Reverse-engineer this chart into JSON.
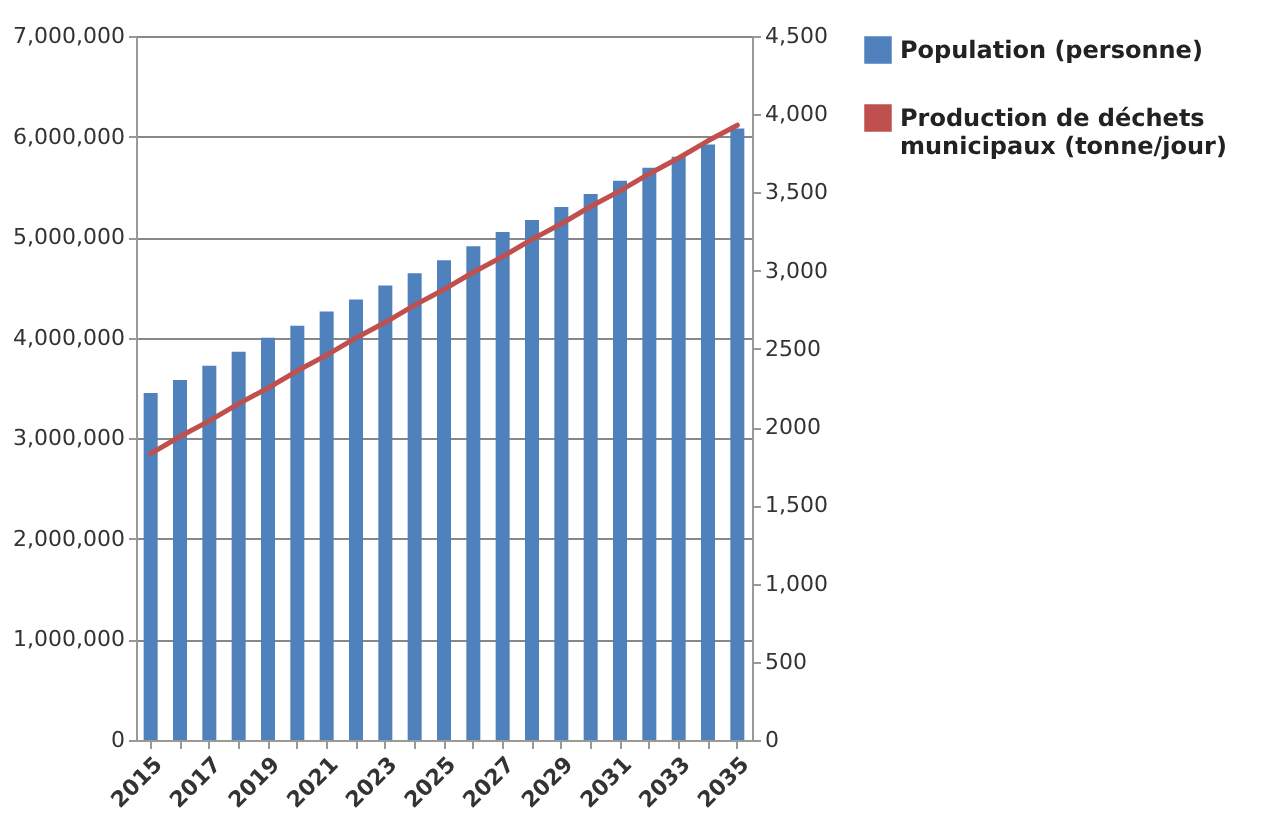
{
  "chart_data": {
    "type": "bar",
    "categories": [
      "2015",
      null,
      "2017",
      null,
      "2019",
      null,
      "2021",
      null,
      "2023",
      null,
      "2025",
      null,
      "2027",
      null,
      "2029",
      null,
      "2031",
      null,
      "2033",
      null,
      "2035"
    ],
    "series": [
      {
        "name": "Population (personne)",
        "color": "#4f81bd",
        "values": [
          3450000,
          3580000,
          3720000,
          3860000,
          4000000,
          4120000,
          4260000,
          4380000,
          4520000,
          4640000,
          4770000,
          4910000,
          5050000,
          5170000,
          5300000,
          5430000,
          5560000,
          5690000,
          5800000,
          5920000,
          6080000
        ]
      },
      {
        "name": "Production de déchets municipaux (tonne/jour)",
        "type": "line",
        "axis": "y2",
        "color": "#c0504d",
        "values": [
          1830,
          1940,
          2040,
          2150,
          2250,
          2360,
          2460,
          2570,
          2670,
          2780,
          2880,
          2990,
          3090,
          3200,
          3300,
          3410,
          3510,
          3620,
          3720,
          3830,
          3930
        ]
      }
    ],
    "ylim": [
      0,
      7000000
    ],
    "yticks": [
      0,
      {
        "value": 1000000,
        "label": "1,000,000"
      },
      {
        "value": 2000000,
        "label": "2,000,000"
      },
      {
        "value": 3000000,
        "label": "3,000,000"
      },
      {
        "value": 4000000,
        "label": "4,000,000"
      },
      {
        "value": 5000000,
        "label": "5,000,000"
      },
      {
        "value": 6000000,
        "label": "6,000,000"
      },
      {
        "value": 7000000,
        "label": "7,000,000"
      }
    ],
    "y2lim": [
      0,
      4500
    ],
    "y2ticks": [
      0,
      500,
      {
        "value": 1000,
        "label": "1,000"
      },
      {
        "value": 1500,
        "label": "1,500"
      },
      {
        "value": 2000,
        "label": "2000"
      },
      {
        "value": 2500,
        "label": "2500"
      },
      {
        "value": 3000,
        "label": "3,000"
      },
      {
        "value": 3500,
        "label": "3,500"
      },
      {
        "value": 4000,
        "label": "4,000"
      },
      {
        "value": 4500,
        "label": "4,500"
      }
    ],
    "grid": "y",
    "legend": "right"
  }
}
